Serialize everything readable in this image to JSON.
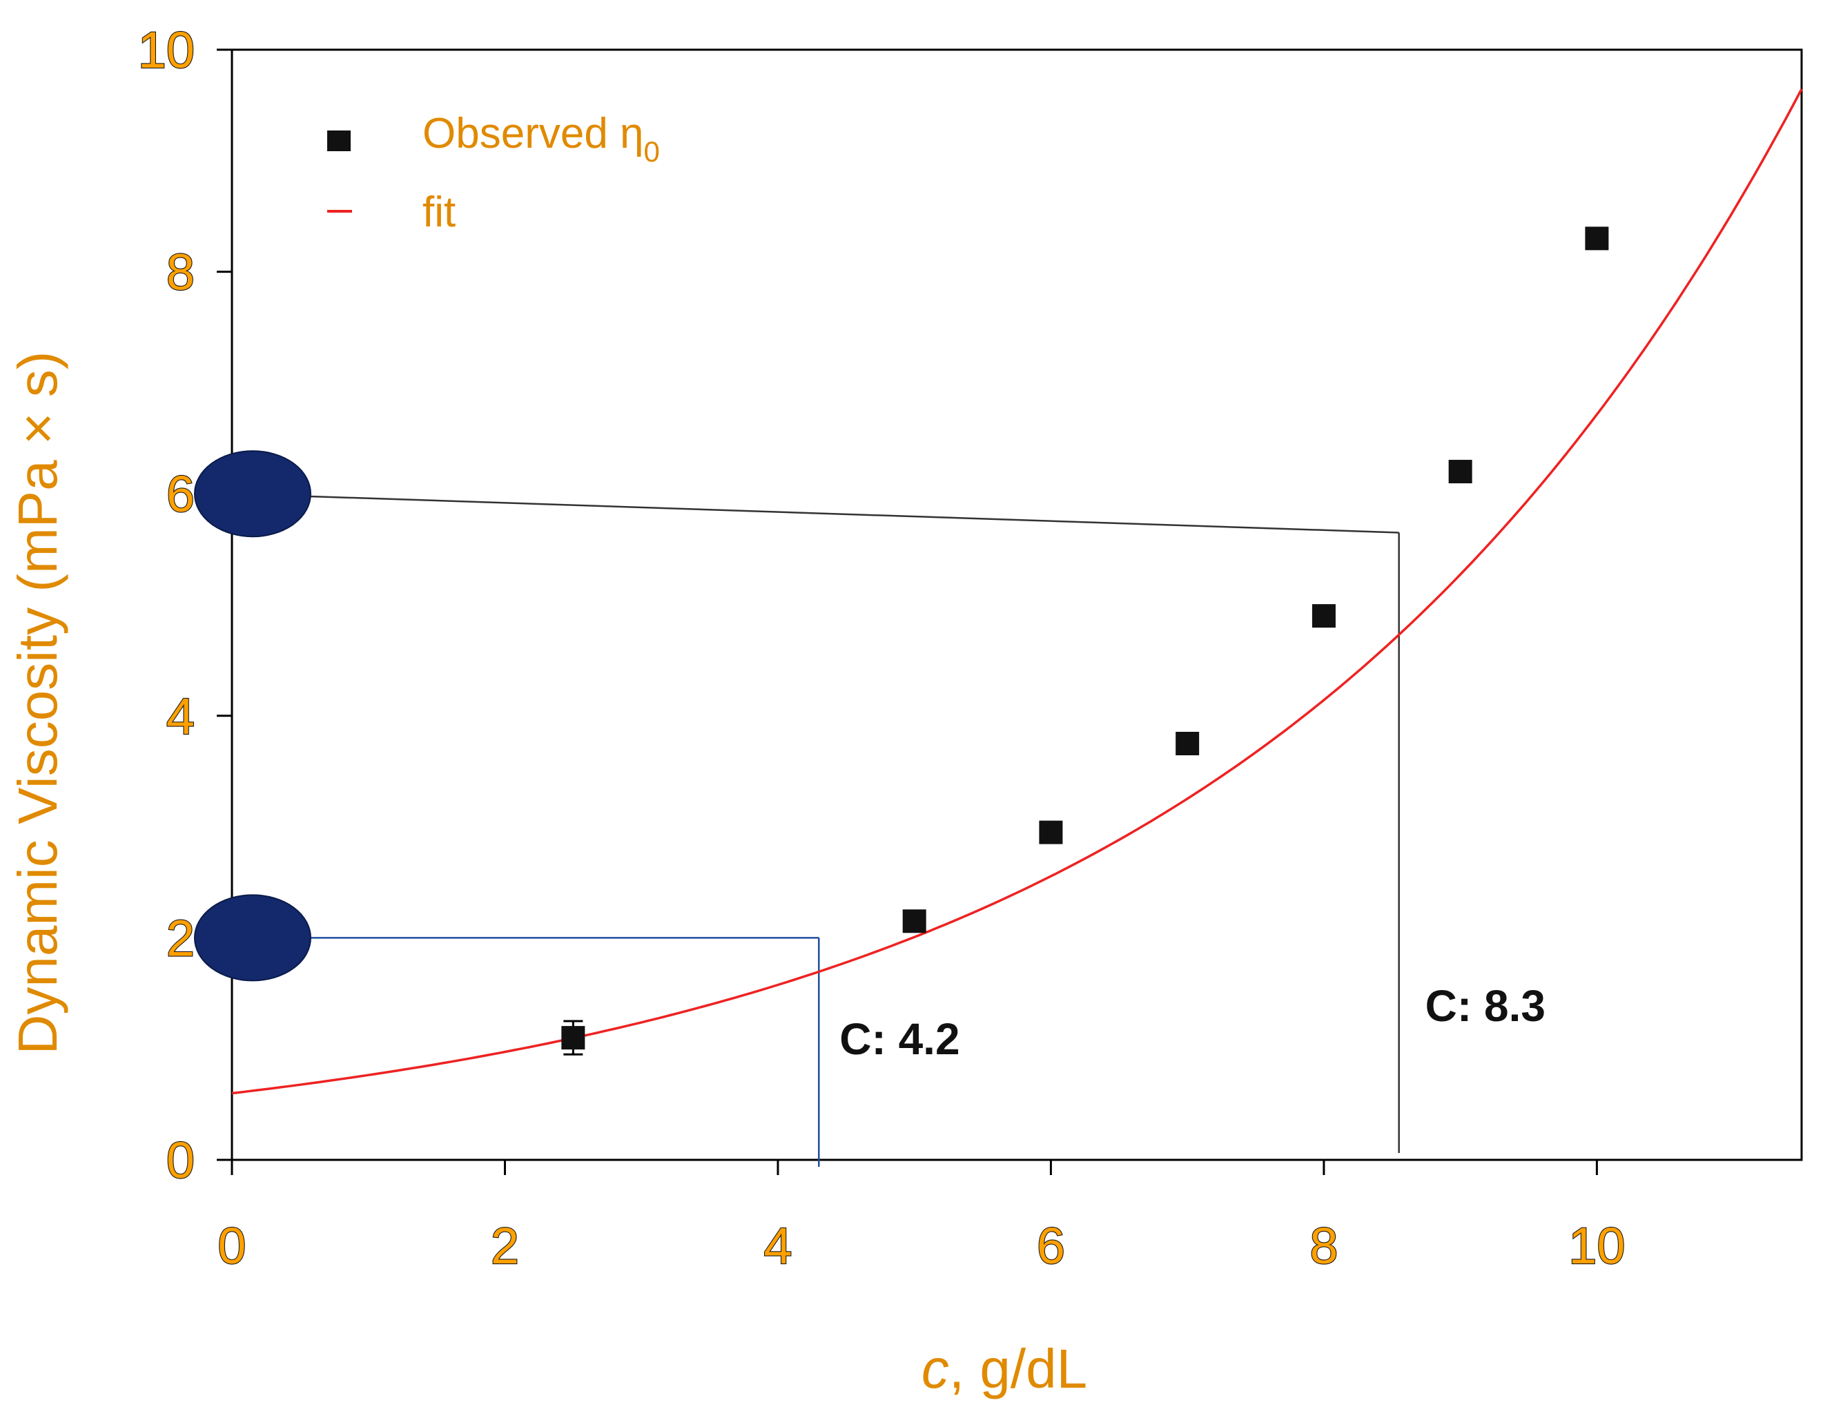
{
  "chart_data": {
    "type": "scatter",
    "title": "",
    "xlabel": {
      "italic": "c",
      "rest": ", g/dL"
    },
    "ylabel": "Dynamic Viscosity (mPa × s)",
    "xlim": [
      0,
      11.5
    ],
    "ylim": [
      0,
      10
    ],
    "xticks": [
      0,
      2,
      4,
      6,
      8,
      10
    ],
    "yticks": [
      0,
      2,
      4,
      6,
      8,
      10
    ],
    "grid": false,
    "legend": {
      "position": "top-left",
      "entries": [
        {
          "label": "Observed η",
          "subscript": "0",
          "marker": "square"
        },
        {
          "label": "fit",
          "marker": "line"
        }
      ]
    },
    "series": [
      {
        "name": "Observed η0",
        "type": "scatter",
        "points": [
          {
            "x": 2.5,
            "y": 1.1,
            "err": 0.15
          },
          {
            "x": 5.0,
            "y": 2.15,
            "err": 0.05
          },
          {
            "x": 6.0,
            "y": 2.95,
            "err": 0.05
          },
          {
            "x": 7.0,
            "y": 3.75,
            "err": 0.04
          },
          {
            "x": 8.0,
            "y": 4.9,
            "err": 0.06
          },
          {
            "x": 9.0,
            "y": 6.2,
            "err": 0.07
          },
          {
            "x": 10.0,
            "y": 8.3,
            "err": 0.03
          }
        ]
      },
      {
        "name": "fit",
        "type": "line",
        "model": "y = 0.6 * exp(0.2415 * x)",
        "a": 0.6,
        "b": 0.2415,
        "x_range": [
          0,
          11.5
        ]
      }
    ],
    "annotations": [
      {
        "label": "C: 4.2",
        "level": 2,
        "x_end": 4.3,
        "color": "#1f4e9e"
      },
      {
        "label": "C: 8.3",
        "level": 6,
        "x_end": 8.55,
        "y_end": 5.65,
        "color": "#333333"
      }
    ],
    "colors": {
      "fit": "#ee2222",
      "marker": "#111111",
      "ellipse": "#13296b",
      "axis_label": "#e08a00"
    }
  }
}
